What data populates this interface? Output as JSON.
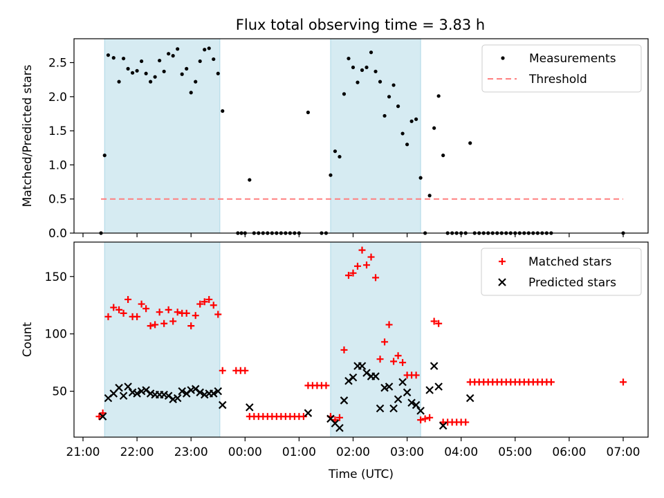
{
  "title": "Flux total observing time = 3.83 h",
  "chart_data": [
    {
      "type": "scatter",
      "title": "Flux total observing time = 3.83 h",
      "xlabel": "",
      "ylabel": "Matched/Predicted stars",
      "x_ticks": [
        "21:00",
        "22:00",
        "23:00",
        "00:00",
        "01:00",
        "02:00",
        "03:00",
        "04:00",
        "05:00",
        "06:00",
        "07:00"
      ],
      "y_ticks": [
        "0.0",
        "0.5",
        "1.0",
        "1.5",
        "2.0",
        "2.5"
      ],
      "ylim": [
        0,
        2.85
      ],
      "legend": {
        "placement": "top-right",
        "entries": [
          "Measurements",
          "Threshold"
        ]
      },
      "shaded_intervals": [
        [
          "21:24",
          "23:32"
        ],
        [
          "01:35",
          "03:15"
        ]
      ],
      "colors": {
        "measurements": "#000000",
        "threshold": "#ff7f7f",
        "shade": "#add8e6"
      },
      "threshold": {
        "value": 0.5,
        "x_start": "21:20",
        "x_end": "07:00"
      },
      "series": [
        {
          "name": "Measurements",
          "points": [
            [
              "21:20",
              0.0
            ],
            [
              "21:24",
              1.14
            ],
            [
              "21:28",
              2.61
            ],
            [
              "21:34",
              2.57
            ],
            [
              "21:40",
              2.22
            ],
            [
              "21:45",
              2.56
            ],
            [
              "21:50",
              2.41
            ],
            [
              "21:55",
              2.35
            ],
            [
              "22:00",
              2.38
            ],
            [
              "22:05",
              2.52
            ],
            [
              "22:10",
              2.34
            ],
            [
              "22:15",
              2.22
            ],
            [
              "22:20",
              2.29
            ],
            [
              "22:25",
              2.53
            ],
            [
              "22:30",
              2.37
            ],
            [
              "22:35",
              2.63
            ],
            [
              "22:40",
              2.6
            ],
            [
              "22:45",
              2.7
            ],
            [
              "22:50",
              2.33
            ],
            [
              "22:55",
              2.41
            ],
            [
              "23:00",
              2.06
            ],
            [
              "23:05",
              2.22
            ],
            [
              "23:10",
              2.52
            ],
            [
              "23:15",
              2.69
            ],
            [
              "23:20",
              2.71
            ],
            [
              "23:25",
              2.55
            ],
            [
              "23:30",
              2.34
            ],
            [
              "23:35",
              1.79
            ],
            [
              "23:52",
              0.0
            ],
            [
              "23:56",
              0.0
            ],
            [
              "00:00",
              0.0
            ],
            [
              "00:05",
              0.78
            ],
            [
              "00:10",
              0.0
            ],
            [
              "00:15",
              0.0
            ],
            [
              "00:20",
              0.0
            ],
            [
              "00:25",
              0.0
            ],
            [
              "00:30",
              0.0
            ],
            [
              "00:35",
              0.0
            ],
            [
              "00:40",
              0.0
            ],
            [
              "00:45",
              0.0
            ],
            [
              "00:50",
              0.0
            ],
            [
              "00:55",
              0.0
            ],
            [
              "01:00",
              0.0
            ],
            [
              "01:10",
              1.77
            ],
            [
              "01:25",
              0.0
            ],
            [
              "01:30",
              0.0
            ],
            [
              "01:35",
              0.85
            ],
            [
              "01:40",
              1.2
            ],
            [
              "01:45",
              1.12
            ],
            [
              "01:50",
              2.04
            ],
            [
              "01:55",
              2.56
            ],
            [
              "02:00",
              2.43
            ],
            [
              "02:05",
              2.21
            ],
            [
              "02:10",
              2.39
            ],
            [
              "02:15",
              2.43
            ],
            [
              "02:20",
              2.65
            ],
            [
              "02:25",
              2.37
            ],
            [
              "02:30",
              2.22
            ],
            [
              "02:35",
              1.72
            ],
            [
              "02:40",
              2.0
            ],
            [
              "02:45",
              2.17
            ],
            [
              "02:50",
              1.86
            ],
            [
              "02:55",
              1.46
            ],
            [
              "03:00",
              1.3
            ],
            [
              "03:05",
              1.64
            ],
            [
              "03:10",
              1.67
            ],
            [
              "03:15",
              0.81
            ],
            [
              "03:20",
              0.0
            ],
            [
              "03:25",
              0.55
            ],
            [
              "03:30",
              1.54
            ],
            [
              "03:35",
              2.01
            ],
            [
              "03:40",
              1.14
            ],
            [
              "03:45",
              0.0
            ],
            [
              "03:50",
              0.0
            ],
            [
              "03:55",
              0.0
            ],
            [
              "04:00",
              0.0
            ],
            [
              "04:05",
              0.0
            ],
            [
              "04:10",
              1.32
            ],
            [
              "04:15",
              0.0
            ],
            [
              "04:20",
              0.0
            ],
            [
              "04:25",
              0.0
            ],
            [
              "04:30",
              0.0
            ],
            [
              "04:35",
              0.0
            ],
            [
              "04:40",
              0.0
            ],
            [
              "04:45",
              0.0
            ],
            [
              "04:50",
              0.0
            ],
            [
              "04:55",
              0.0
            ],
            [
              "05:00",
              0.0
            ],
            [
              "05:05",
              0.0
            ],
            [
              "05:10",
              0.0
            ],
            [
              "05:15",
              0.0
            ],
            [
              "05:20",
              0.0
            ],
            [
              "05:25",
              0.0
            ],
            [
              "05:30",
              0.0
            ],
            [
              "05:35",
              0.0
            ],
            [
              "05:40",
              0.0
            ],
            [
              "07:00",
              0.0
            ]
          ]
        }
      ]
    },
    {
      "type": "scatter",
      "xlabel": "Time (UTC)",
      "ylabel": "Count",
      "x_ticks": [
        "21:00",
        "22:00",
        "23:00",
        "00:00",
        "01:00",
        "02:00",
        "03:00",
        "04:00",
        "05:00",
        "06:00",
        "07:00"
      ],
      "y_ticks": [
        "50",
        "100",
        "150"
      ],
      "ylim": [
        10,
        180
      ],
      "legend": {
        "placement": "top-right",
        "entries": [
          "Matched stars",
          "Predicted stars"
        ]
      },
      "shaded_intervals": [
        [
          "21:24",
          "23:32"
        ],
        [
          "01:35",
          "03:15"
        ]
      ],
      "colors": {
        "matched": "#ff0000",
        "predicted": "#000000",
        "shade": "#add8e6"
      },
      "series": [
        {
          "name": "Matched stars",
          "marker": "plus",
          "points": [
            [
              "21:18",
              28
            ],
            [
              "21:22",
              31
            ],
            [
              "21:28",
              115
            ],
            [
              "21:34",
              123
            ],
            [
              "21:40",
              121
            ],
            [
              "21:45",
              118
            ],
            [
              "21:50",
              130
            ],
            [
              "21:55",
              115
            ],
            [
              "22:00",
              115
            ],
            [
              "22:05",
              126
            ],
            [
              "22:10",
              122
            ],
            [
              "22:15",
              107
            ],
            [
              "22:20",
              108
            ],
            [
              "22:25",
              119
            ],
            [
              "22:30",
              109
            ],
            [
              "22:35",
              121
            ],
            [
              "22:40",
              111
            ],
            [
              "22:45",
              119
            ],
            [
              "22:50",
              118
            ],
            [
              "22:55",
              118
            ],
            [
              "23:00",
              107
            ],
            [
              "23:05",
              116
            ],
            [
              "23:10",
              126
            ],
            [
              "23:15",
              128
            ],
            [
              "23:20",
              130
            ],
            [
              "23:25",
              125
            ],
            [
              "23:30",
              117
            ],
            [
              "23:35",
              68
            ],
            [
              "23:50",
              68
            ],
            [
              "23:55",
              68
            ],
            [
              "00:00",
              68
            ],
            [
              "00:05",
              28
            ],
            [
              "00:10",
              28
            ],
            [
              "00:15",
              28
            ],
            [
              "00:20",
              28
            ],
            [
              "00:25",
              28
            ],
            [
              "00:30",
              28
            ],
            [
              "00:35",
              28
            ],
            [
              "00:40",
              28
            ],
            [
              "00:45",
              28
            ],
            [
              "00:50",
              28
            ],
            [
              "00:55",
              28
            ],
            [
              "01:00",
              28
            ],
            [
              "01:05",
              28
            ],
            [
              "01:10",
              55
            ],
            [
              "01:15",
              55
            ],
            [
              "01:20",
              55
            ],
            [
              "01:25",
              55
            ],
            [
              "01:30",
              55
            ],
            [
              "01:35",
              28
            ],
            [
              "01:40",
              25
            ],
            [
              "01:45",
              27
            ],
            [
              "01:50",
              86
            ],
            [
              "01:55",
              151
            ],
            [
              "02:00",
              153
            ],
            [
              "02:05",
              159
            ],
            [
              "02:10",
              173
            ],
            [
              "02:15",
              160
            ],
            [
              "02:20",
              167
            ],
            [
              "02:25",
              149
            ],
            [
              "02:30",
              78
            ],
            [
              "02:35",
              93
            ],
            [
              "02:40",
              108
            ],
            [
              "02:45",
              76
            ],
            [
              "02:50",
              81
            ],
            [
              "02:55",
              75
            ],
            [
              "03:00",
              64
            ],
            [
              "03:05",
              64
            ],
            [
              "03:10",
              64
            ],
            [
              "03:15",
              25
            ],
            [
              "03:20",
              26
            ],
            [
              "03:25",
              27
            ],
            [
              "03:30",
              111
            ],
            [
              "03:35",
              109
            ],
            [
              "03:40",
              23
            ],
            [
              "03:45",
              23
            ],
            [
              "03:50",
              23
            ],
            [
              "03:55",
              23
            ],
            [
              "04:00",
              23
            ],
            [
              "04:05",
              23
            ],
            [
              "04:10",
              58
            ],
            [
              "04:15",
              58
            ],
            [
              "04:20",
              58
            ],
            [
              "04:25",
              58
            ],
            [
              "04:30",
              58
            ],
            [
              "04:35",
              58
            ],
            [
              "04:40",
              58
            ],
            [
              "04:45",
              58
            ],
            [
              "04:50",
              58
            ],
            [
              "04:55",
              58
            ],
            [
              "05:00",
              58
            ],
            [
              "05:05",
              58
            ],
            [
              "05:10",
              58
            ],
            [
              "05:15",
              58
            ],
            [
              "05:20",
              58
            ],
            [
              "05:25",
              58
            ],
            [
              "05:30",
              58
            ],
            [
              "05:35",
              58
            ],
            [
              "05:40",
              58
            ],
            [
              "07:00",
              58
            ]
          ]
        },
        {
          "name": "Predicted stars",
          "marker": "x",
          "points": [
            [
              "21:22",
              28
            ],
            [
              "21:28",
              44
            ],
            [
              "21:34",
              48
            ],
            [
              "21:40",
              53
            ],
            [
              "21:45",
              46
            ],
            [
              "21:50",
              54
            ],
            [
              "21:55",
              49
            ],
            [
              "22:00",
              48
            ],
            [
              "22:05",
              50
            ],
            [
              "22:10",
              51
            ],
            [
              "22:15",
              48
            ],
            [
              "22:20",
              47
            ],
            [
              "22:25",
              47
            ],
            [
              "22:30",
              47
            ],
            [
              "22:35",
              46
            ],
            [
              "22:40",
              43
            ],
            [
              "22:45",
              44
            ],
            [
              "22:50",
              50
            ],
            [
              "22:55",
              48
            ],
            [
              "23:00",
              51
            ],
            [
              "23:05",
              52
            ],
            [
              "23:10",
              49
            ],
            [
              "23:15",
              47
            ],
            [
              "23:20",
              48
            ],
            [
              "23:25",
              48
            ],
            [
              "23:30",
              50
            ],
            [
              "23:35",
              38
            ],
            [
              "00:05",
              36
            ],
            [
              "01:10",
              31
            ],
            [
              "01:35",
              26
            ],
            [
              "01:40",
              22
            ],
            [
              "01:45",
              18
            ],
            [
              "01:50",
              42
            ],
            [
              "01:55",
              59
            ],
            [
              "02:00",
              62
            ],
            [
              "02:05",
              72
            ],
            [
              "02:10",
              72
            ],
            [
              "02:15",
              66
            ],
            [
              "02:20",
              63
            ],
            [
              "02:25",
              63
            ],
            [
              "02:30",
              35
            ],
            [
              "02:35",
              53
            ],
            [
              "02:40",
              54
            ],
            [
              "02:45",
              35
            ],
            [
              "02:50",
              43
            ],
            [
              "02:55",
              58
            ],
            [
              "03:00",
              49
            ],
            [
              "03:05",
              40
            ],
            [
              "03:10",
              38
            ],
            [
              "03:15",
              33
            ],
            [
              "03:25",
              51
            ],
            [
              "03:30",
              72
            ],
            [
              "03:35",
              54
            ],
            [
              "03:40",
              20
            ],
            [
              "04:10",
              44
            ]
          ]
        }
      ]
    }
  ]
}
